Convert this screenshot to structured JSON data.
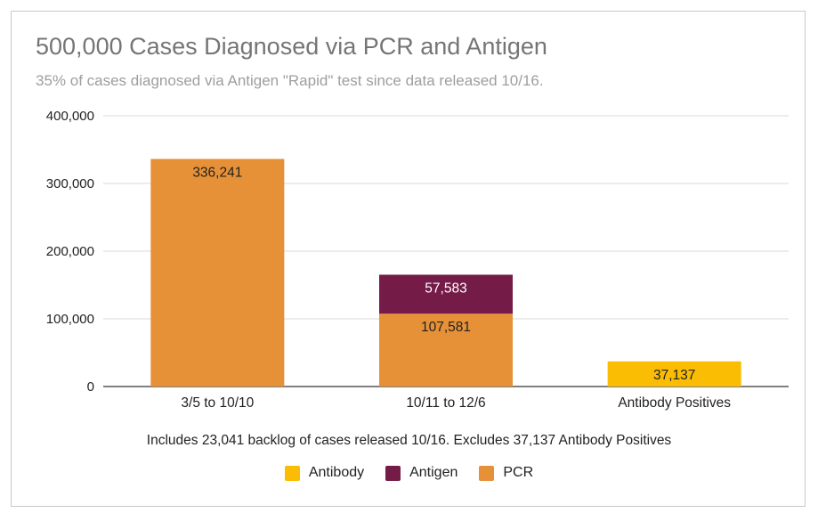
{
  "chart_data": {
    "type": "bar",
    "stacked": true,
    "title": "500,000 Cases Diagnosed via PCR and Antigen",
    "subtitle": "35% of cases diagnosed via Antigen \"Rapid\" test since data released 10/16.",
    "xlabel": "Includes 23,041 backlog of cases released 10/16.  Excludes 37,137 Antibody Positives",
    "ylabel": "",
    "ylim": [
      0,
      400000
    ],
    "yticks": [
      "0",
      "100,000",
      "200,000",
      "300,000",
      "400,000"
    ],
    "ytick_values": [
      0,
      100000,
      200000,
      300000,
      400000
    ],
    "categories": [
      "3/5 to 10/10",
      "10/11 to 12/6",
      "Antibody Positives"
    ],
    "series": [
      {
        "name": "PCR",
        "color": "#e69138",
        "label_color": "#222222",
        "values": [
          336241,
          107581,
          0
        ],
        "labels": [
          "336,241",
          "107,581",
          ""
        ]
      },
      {
        "name": "Antigen",
        "color": "#741b47",
        "label_color": "#ffffff",
        "values": [
          0,
          57583,
          0
        ],
        "labels": [
          "",
          "57,583",
          ""
        ]
      },
      {
        "name": "Antibody",
        "color": "#fbbc04",
        "label_color": "#222222",
        "values": [
          0,
          0,
          37137
        ],
        "labels": [
          "",
          "",
          "37,137"
        ]
      }
    ],
    "legend": {
      "position": "bottom",
      "order": [
        "Antibody",
        "Antigen",
        "PCR"
      ]
    },
    "grid": true
  }
}
